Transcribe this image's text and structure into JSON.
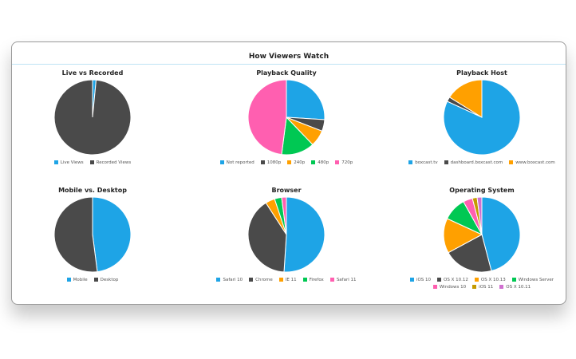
{
  "card_title": "How Viewers Watch",
  "chart_data": [
    {
      "type": "pie",
      "title": "Live vs Recorded",
      "legend": "bottom",
      "categories": [
        "Live Views",
        "Recorded Views"
      ],
      "values": [
        1.5,
        98.5
      ],
      "colors": [
        "#1ea4e6",
        "#4a4a4a"
      ]
    },
    {
      "type": "pie",
      "title": "Playback Quality",
      "legend": "bottom",
      "categories": [
        "Not reported",
        "1080p",
        "240p",
        "480p",
        "720p"
      ],
      "values": [
        26,
        5,
        7,
        14,
        48
      ],
      "colors": [
        "#1ea4e6",
        "#4a4a4a",
        "#ffa000",
        "#00c853",
        "#ff5fb0"
      ]
    },
    {
      "type": "pie",
      "title": "Playback Host",
      "legend": "bottom",
      "categories": [
        "boxcast.tv",
        "dashboard.boxcast.com",
        "www.boxcast.com"
      ],
      "values": [
        82,
        2,
        16
      ],
      "colors": [
        "#1ea4e6",
        "#4a4a4a",
        "#ffa000"
      ]
    },
    {
      "type": "pie",
      "title": "Mobile vs. Desktop",
      "legend": "bottom",
      "categories": [
        "Mobile",
        "Desktop"
      ],
      "values": [
        48,
        52
      ],
      "colors": [
        "#1ea4e6",
        "#4a4a4a"
      ]
    },
    {
      "type": "pie",
      "title": "Browser",
      "legend": "bottom",
      "categories": [
        "Safari 10",
        "Chrome",
        "IE 11",
        "Firefox",
        "Safari 11"
      ],
      "values": [
        51,
        40,
        4,
        3,
        2
      ],
      "colors": [
        "#1ea4e6",
        "#4a4a4a",
        "#ffa000",
        "#00c853",
        "#ff5fb0"
      ]
    },
    {
      "type": "pie",
      "title": "Operating System",
      "legend": "bottom",
      "categories": [
        "iOS 10",
        "OS X 10.12",
        "OS X 10.13",
        "Windows Server",
        "Windows 10",
        "iOS 11",
        "OS X 10.11"
      ],
      "values": [
        46,
        21,
        15,
        10,
        4,
        2,
        2
      ],
      "colors": [
        "#1ea4e6",
        "#4a4a4a",
        "#ffa000",
        "#00c853",
        "#ff5fb0",
        "#c49a00",
        "#d070d0"
      ]
    }
  ]
}
